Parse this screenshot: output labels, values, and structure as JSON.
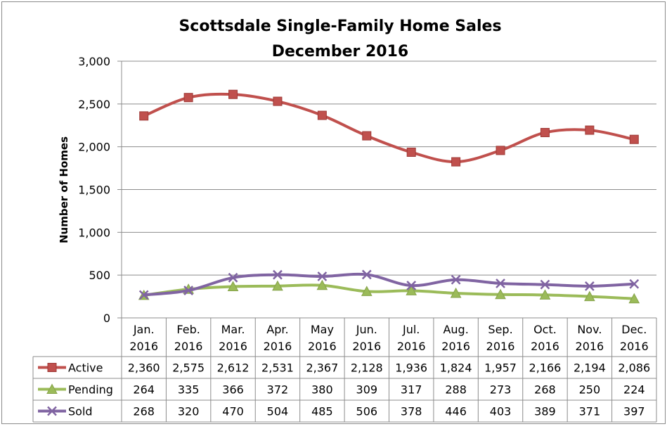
{
  "chart_data": {
    "type": "line",
    "title": "Scottsdale Single-Family Home Sales",
    "subtitle": "December 2016",
    "xlabel": "",
    "ylabel": "Number of Homes",
    "ylim": [
      0,
      3000
    ],
    "yticks": [
      0,
      500,
      1000,
      1500,
      2000,
      2500,
      3000
    ],
    "ytick_labels": [
      "0",
      "500",
      "1,000",
      "1,500",
      "2,000",
      "2,500",
      "3,000"
    ],
    "grid": true,
    "legend": "table-left",
    "categories": [
      [
        "Jan.",
        "2016"
      ],
      [
        "Feb.",
        "2016"
      ],
      [
        "Mar.",
        "2016"
      ],
      [
        "Apr.",
        "2016"
      ],
      [
        "May",
        "2016"
      ],
      [
        "Jun.",
        "2016"
      ],
      [
        "Jul.",
        "2016"
      ],
      [
        "Aug.",
        "2016"
      ],
      [
        "Sep.",
        "2016"
      ],
      [
        "Oct.",
        "2016"
      ],
      [
        "Nov.",
        "2016"
      ],
      [
        "Dec.",
        "2016"
      ]
    ],
    "series": [
      {
        "name": "Active",
        "color": "#C0504D",
        "marker": "square",
        "values": [
          2360,
          2575,
          2612,
          2531,
          2367,
          2128,
          1936,
          1824,
          1957,
          2166,
          2194,
          2086
        ],
        "labels": [
          "2,360",
          "2,575",
          "2,612",
          "2,531",
          "2,367",
          "2,128",
          "1,936",
          "1,824",
          "1,957",
          "2,166",
          "2,194",
          "2,086"
        ]
      },
      {
        "name": "Pending",
        "color": "#9BBB59",
        "marker": "triangle",
        "values": [
          264,
          335,
          366,
          372,
          380,
          309,
          317,
          288,
          273,
          268,
          250,
          224
        ],
        "labels": [
          "264",
          "335",
          "366",
          "372",
          "380",
          "309",
          "317",
          "288",
          "273",
          "268",
          "250",
          "224"
        ]
      },
      {
        "name": "Sold",
        "color": "#8064A2",
        "marker": "x",
        "values": [
          268,
          320,
          470,
          504,
          485,
          506,
          378,
          446,
          403,
          389,
          371,
          397
        ],
        "labels": [
          "268",
          "320",
          "470",
          "504",
          "485",
          "506",
          "378",
          "446",
          "403",
          "389",
          "371",
          "397"
        ]
      }
    ]
  }
}
